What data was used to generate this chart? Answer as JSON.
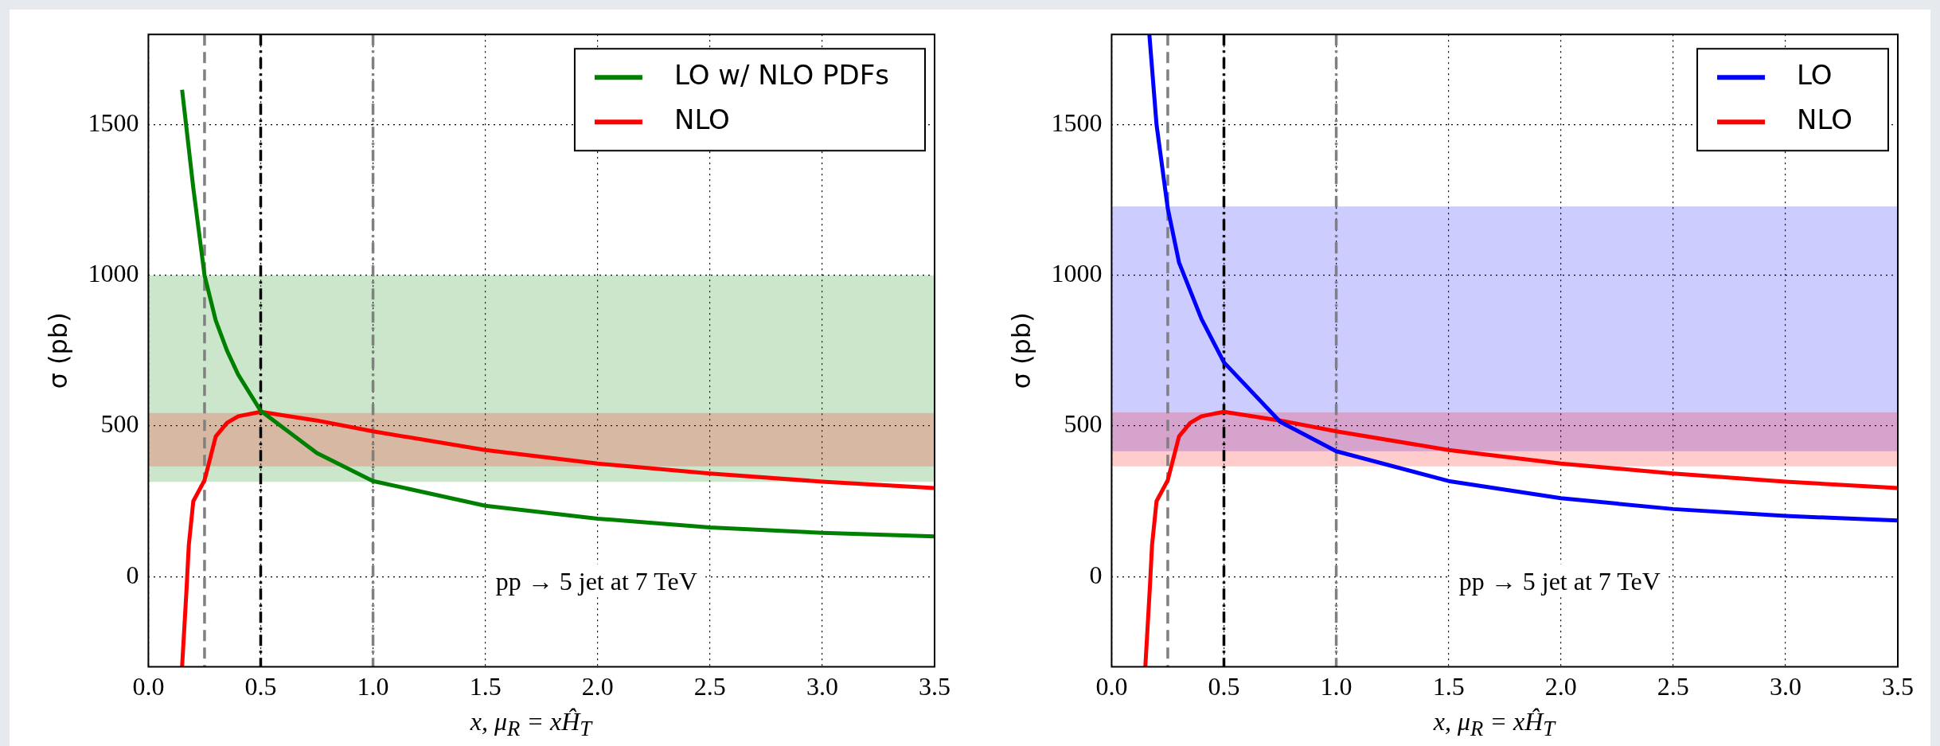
{
  "chart_data": [
    {
      "type": "line",
      "xlabel": "x, μ$_{R}$ = xĤ$_{T}$",
      "ylabel": "σ (pb)",
      "xlim": [
        0,
        3.5
      ],
      "xticks": [
        {
          "value": 0,
          "label": "0.0"
        },
        0.5,
        {
          "value": 1,
          "label": "1.0"
        },
        1.5,
        {
          "value": 2,
          "label": "2.0"
        },
        2.5,
        {
          "value": 3,
          "label": "3.0"
        },
        3.5
      ],
      "ylim": [
        -300,
        1800
      ],
      "yticks": [
        0,
        500,
        1000,
        1500
      ],
      "grid": true,
      "legend": "top right",
      "marker": "none",
      "series": [
        {
          "name": "LO w/ NLO PDFs",
          "color": "#008000",
          "x": [
            0.15,
            0.2,
            0.25,
            0.3,
            0.35,
            0.4,
            0.5,
            0.75,
            1,
            1.5,
            2,
            2.5,
            3,
            3.5
          ],
          "values": [
            1616,
            1290,
            1000,
            850,
            750,
            670,
            550,
            410,
            317,
            235,
            192,
            163,
            145,
            133
          ]
        },
        {
          "name": "NLO",
          "color": "#ff0000",
          "x": [
            0.15,
            0.17,
            0.18,
            0.2,
            0.25,
            0.3,
            0.35,
            0.4,
            0.5,
            0.75,
            1,
            1.5,
            2,
            2.5,
            3,
            3.5
          ],
          "values": [
            -300,
            -40,
            105,
            250,
            320,
            465,
            510,
            532,
            547,
            518,
            482,
            420,
            375,
            342,
            315,
            294
          ]
        }
      ],
      "bands": [
        {
          "axis": "y",
          "from": 314,
          "to": 1000,
          "color": "#008000"
        },
        {
          "axis": "y",
          "from": 366,
          "to": 543,
          "color": "#ff0000"
        }
      ],
      "ref_lines": [
        {
          "axis": "x",
          "value": 0.25,
          "color": "#808080",
          "line_style": "dashed"
        },
        {
          "axis": "x",
          "value": 0.5,
          "color": "#000000",
          "line_style": "dashdot"
        },
        {
          "axis": "x",
          "value": 1,
          "color": "#808080",
          "line_style": "dashdot"
        }
      ],
      "annotations": [
        "pp → 5 jet at 7 TeV"
      ]
    },
    {
      "type": "line",
      "xlabel": "x, μ$_{R}$ = xĤ$_{T}$",
      "ylabel": "σ (pb)",
      "xlim": [
        0,
        3.5
      ],
      "xticks": [
        {
          "value": 0,
          "label": "0.0"
        },
        0.5,
        {
          "value": 1,
          "label": "1.0"
        },
        1.5,
        {
          "value": 2,
          "label": "2.0"
        },
        2.5,
        {
          "value": 3,
          "label": "3.0"
        },
        3.5
      ],
      "ylim": [
        -300,
        1800
      ],
      "yticks": [
        0,
        500,
        1000,
        1500
      ],
      "grid": true,
      "legend": "top right",
      "marker": "none",
      "series": [
        {
          "name": "LO",
          "color": "#0000ff",
          "x": [
            0.168,
            0.2,
            0.25,
            0.3,
            0.4,
            0.5,
            0.75,
            1,
            1.5,
            2,
            2.5,
            3,
            3.5
          ],
          "values": [
            1800,
            1500,
            1222,
            1043,
            855,
            711,
            514,
            416,
            317,
            260,
            224,
            201,
            186
          ]
        },
        {
          "name": "NLO",
          "color": "#ff0000",
          "x": [
            0.15,
            0.17,
            0.18,
            0.2,
            0.25,
            0.3,
            0.35,
            0.4,
            0.5,
            0.75,
            1,
            1.5,
            2,
            2.5,
            3,
            3.5
          ],
          "values": [
            -300,
            -40,
            105,
            250,
            320,
            465,
            510,
            532,
            547,
            518,
            482,
            420,
            375,
            342,
            315,
            294
          ]
        }
      ],
      "bands": [
        {
          "axis": "y",
          "from": 416,
          "to": 1229,
          "color": "#0000ff"
        },
        {
          "axis": "y",
          "from": 366,
          "to": 545,
          "color": "#ff0000"
        }
      ],
      "ref_lines": [
        {
          "axis": "x",
          "value": 0.25,
          "color": "#808080",
          "line_style": "dashed"
        },
        {
          "axis": "x",
          "value": 0.5,
          "color": "#000000",
          "line_style": "dashdot"
        },
        {
          "axis": "x",
          "value": 1,
          "color": "#808080",
          "line_style": "dashdot"
        }
      ],
      "annotations": [
        "pp → 5 jet at 7 TeV"
      ]
    }
  ]
}
